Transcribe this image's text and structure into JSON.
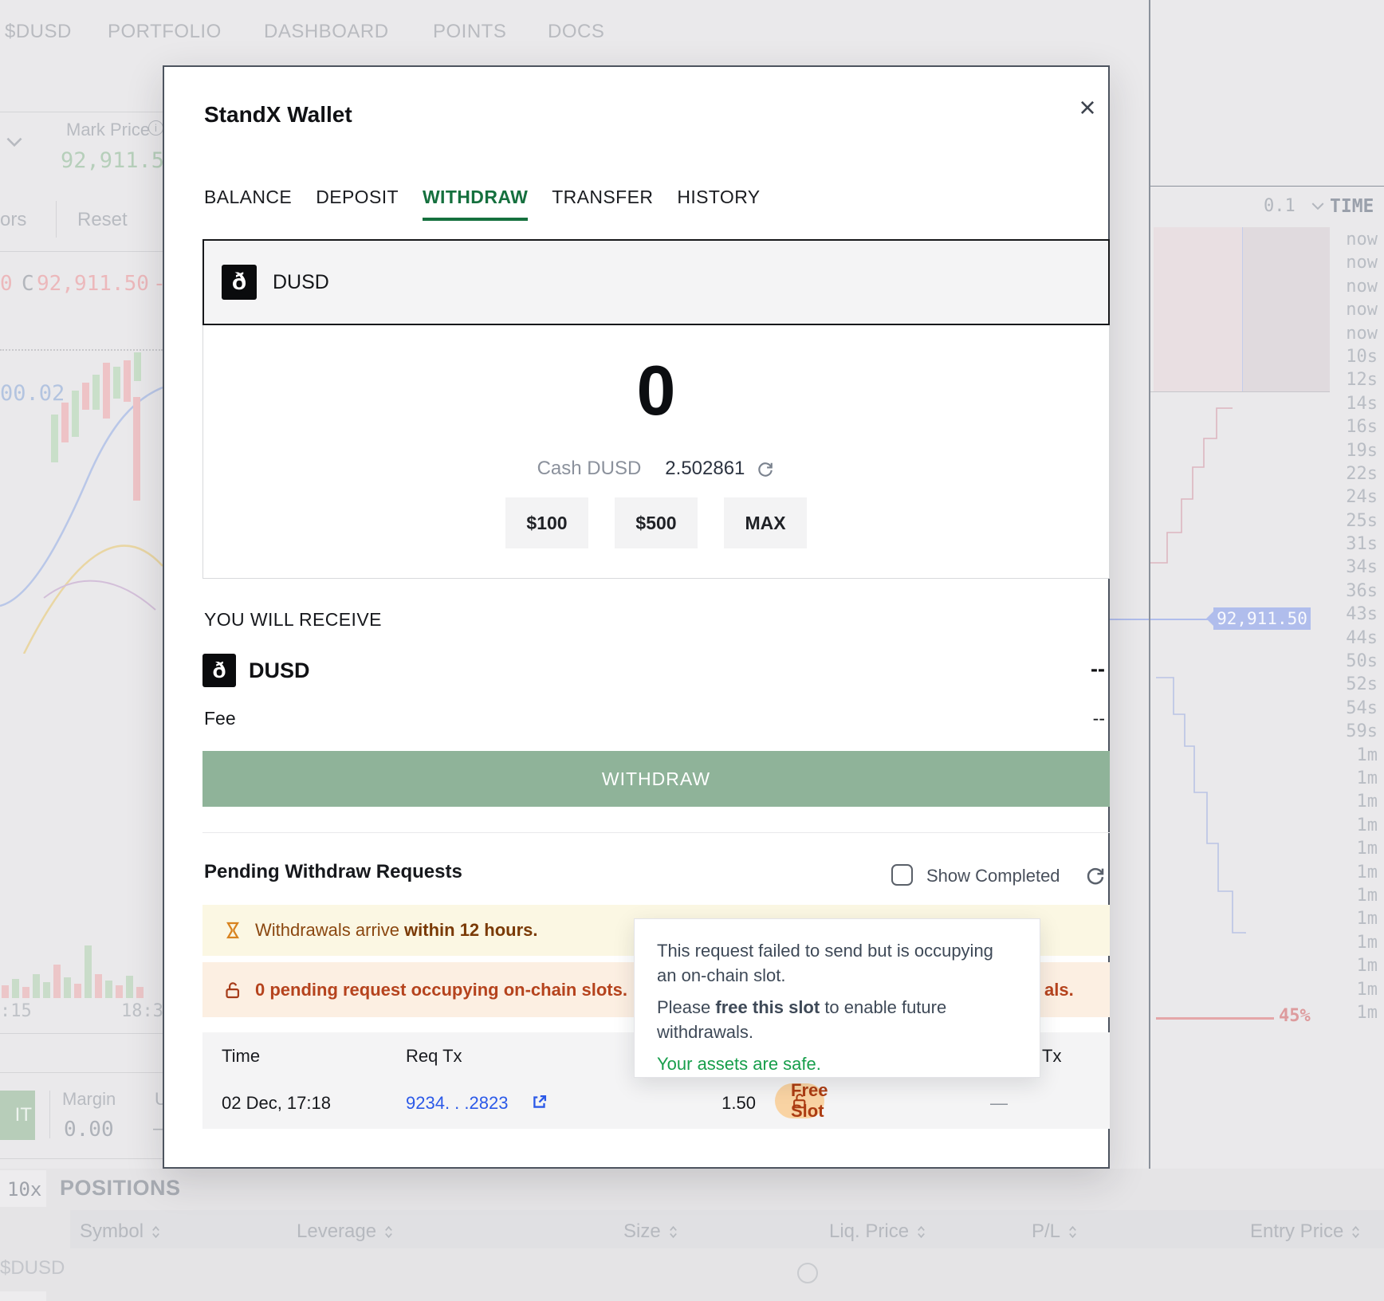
{
  "nav": {
    "items": [
      "$DUSD",
      "PORTFOLIO",
      "DASHBOARD",
      "POINTS",
      "DOCS"
    ]
  },
  "background": {
    "mark_price_label": "Mark Price",
    "mark_price_value": "92,911.5",
    "toolbar_left": "ors",
    "reset_button": "Reset",
    "ohlc": {
      "o": "0",
      "c_label": "C",
      "close": "92,911.50",
      "delta": "-"
    },
    "axis_price": "00.02",
    "axis_time_left": ":15",
    "axis_time_right": "18:3",
    "interval": "0.1",
    "time_header": "TIME",
    "times": [
      "now",
      "now",
      "now",
      "now",
      "now",
      "10s",
      "12s",
      "14s",
      "16s",
      "19s",
      "22s",
      "24s",
      "25s",
      "31s",
      "34s",
      "36s",
      "43s",
      "44s",
      "50s",
      "52s",
      "54s",
      "59s",
      "1m",
      "1m",
      "1m",
      "1m",
      "1m",
      "1m",
      "1m",
      "1m",
      "1m",
      "1m",
      "1m",
      "1m"
    ],
    "price_tag": "92,911.50",
    "depth_pct": "45%",
    "positions_title": "POSITIONS",
    "leverage_badge": "10x",
    "symbol_badge": "$DUSD",
    "edit_partial": "IT",
    "margin_label": "Margin",
    "margin_value": "0.00",
    "unrealized_partial": "U",
    "dash": "—",
    "columns": [
      "Symbol",
      "Leverage",
      "Size",
      "Liq. Price",
      "P/L",
      "Entry Price"
    ]
  },
  "modal": {
    "title": "StandX Wallet",
    "close_glyph": "×",
    "tabs": [
      "BALANCE",
      "DEPOSIT",
      "WITHDRAW",
      "TRANSFER",
      "HISTORY"
    ],
    "token": {
      "symbol": "DUSD",
      "icon_glyph": "ð"
    },
    "amount": {
      "value": "0",
      "balance_label": "Cash DUSD",
      "balance_value": "2.502861",
      "quick": [
        "$100",
        "$500",
        "MAX"
      ]
    },
    "receive": {
      "heading": "YOU WILL RECEIVE",
      "token": "DUSD",
      "value": "--",
      "fee_label": "Fee",
      "fee_value": "--"
    },
    "withdraw_button": "WITHDRAW",
    "pending": {
      "heading": "Pending Withdraw Requests",
      "show_completed": "Show Completed",
      "banner_info": {
        "prefix": "Withdrawals arrive ",
        "bold": "within 12 hours."
      },
      "banner_warn": {
        "text": "0 pending request occupying on-chain slots.",
        "right_fragment": "als."
      },
      "tooltip": {
        "line1": "This request failed to send but is occupying an on-chain slot.",
        "line2_prefix": "Please ",
        "line2_bold": "free this slot",
        "line2_suffix": " to enable future withdrawals.",
        "line3": "Your assets are safe."
      },
      "table": {
        "headers": {
          "time": "Time",
          "req_tx": "Req Tx",
          "last": "Tx"
        },
        "row": {
          "time": "02 Dec, 17:18",
          "req_tx": "9234. . .2823",
          "amount": "1.50",
          "action": "Free Slot",
          "last": "—"
        }
      }
    }
  }
}
